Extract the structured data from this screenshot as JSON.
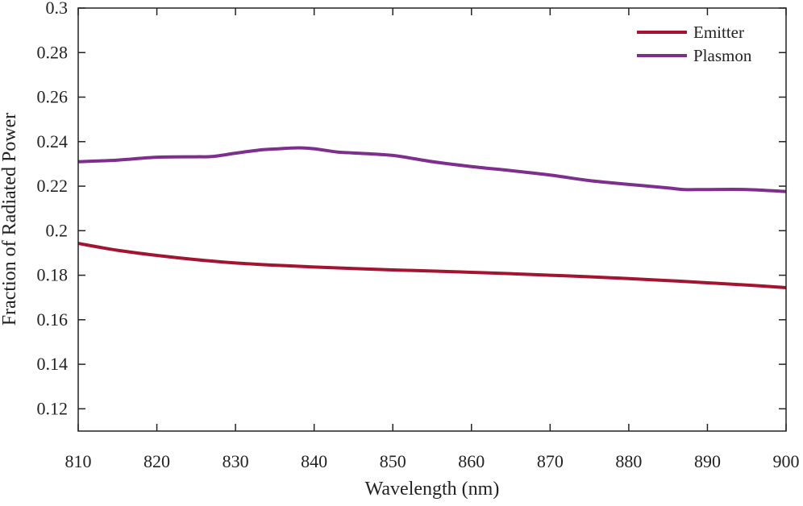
{
  "chart_data": {
    "type": "line",
    "title": "",
    "xlabel": "Wavelength (nm)",
    "ylabel": "Fraction of Radiated Power",
    "xlim": [
      810,
      900
    ],
    "ylim": [
      0.11,
      0.3
    ],
    "xticks": [
      810,
      820,
      830,
      840,
      850,
      860,
      870,
      880,
      890,
      900
    ],
    "xtick_labels": [
      "810",
      "820",
      "830",
      "840",
      "850",
      "860",
      "870",
      "880",
      "890",
      "900"
    ],
    "yticks": [
      0.12,
      0.14,
      0.16,
      0.18,
      0.2,
      0.22,
      0.24,
      0.26,
      0.28,
      0.3
    ],
    "ytick_labels": [
      "0.12",
      "0.14",
      "0.16",
      "0.18",
      "0.2",
      "0.22",
      "0.24",
      "0.26",
      "0.28",
      "0.3"
    ],
    "grid": false,
    "legend_position": "top-right",
    "series": [
      {
        "name": "Emitter",
        "color": "#a2142f",
        "x": [
          810,
          815,
          820,
          825,
          830,
          835,
          840,
          845,
          850,
          855,
          860,
          865,
          870,
          875,
          880,
          885,
          890,
          895,
          900
        ],
        "y": [
          0.1943,
          0.1912,
          0.1889,
          0.187,
          0.1855,
          0.1845,
          0.1837,
          0.183,
          0.1824,
          0.1819,
          0.1813,
          0.1807,
          0.18,
          0.1793,
          0.1785,
          0.1776,
          0.1766,
          0.1756,
          0.1744
        ]
      },
      {
        "name": "Plasmon",
        "color": "#7e2f8e",
        "x": [
          810,
          815,
          820,
          825,
          827,
          830,
          833,
          835,
          838,
          840,
          843,
          845,
          850,
          855,
          860,
          865,
          870,
          875,
          880,
          885,
          887,
          890,
          895,
          900
        ],
        "y": [
          0.231,
          0.2317,
          0.233,
          0.2332,
          0.2333,
          0.2348,
          0.2362,
          0.2367,
          0.2372,
          0.2368,
          0.2353,
          0.2349,
          0.2338,
          0.231,
          0.2288,
          0.227,
          0.225,
          0.2225,
          0.2208,
          0.2192,
          0.2185,
          0.2185,
          0.2185,
          0.2176
        ]
      }
    ]
  }
}
